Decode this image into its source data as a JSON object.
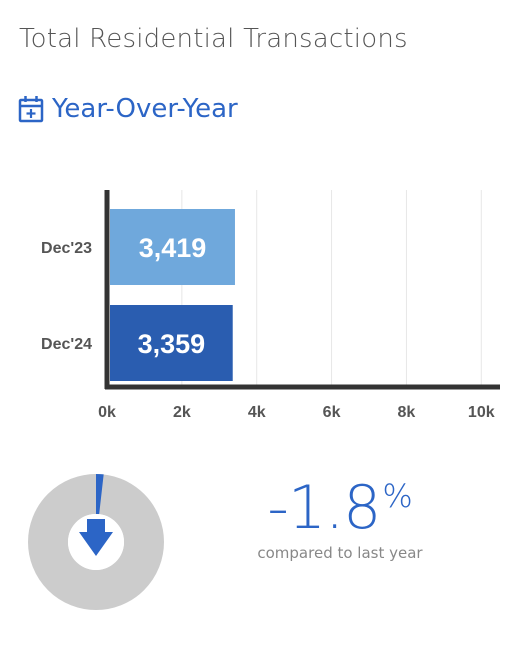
{
  "header": {
    "title": "Total Residential Transactions",
    "subtitle": "Year-Over-Year",
    "subtitle_icon": "calendar-plus-icon"
  },
  "chart_data": {
    "type": "bar",
    "orientation": "horizontal",
    "categories": [
      "Dec'23",
      "Dec'24"
    ],
    "values": [
      3419,
      3359
    ],
    "value_labels": [
      "3,419",
      "3,359"
    ],
    "colors": [
      "#6fa8dc",
      "#2a5db0"
    ],
    "xlim": [
      0,
      10500
    ],
    "xticks": [
      0,
      2000,
      4000,
      6000,
      8000,
      10000
    ],
    "xtick_labels": [
      "0k",
      "2k",
      "4k",
      "6k",
      "8k",
      "10k"
    ],
    "grid": true
  },
  "change": {
    "value": "-1.8",
    "unit": "%",
    "caption": "compared to last year",
    "direction_icon": "arrow-down-icon",
    "ring_fraction": 0.018,
    "colors": {
      "accent": "#2c65c6",
      "ring": "#cccccc"
    }
  }
}
